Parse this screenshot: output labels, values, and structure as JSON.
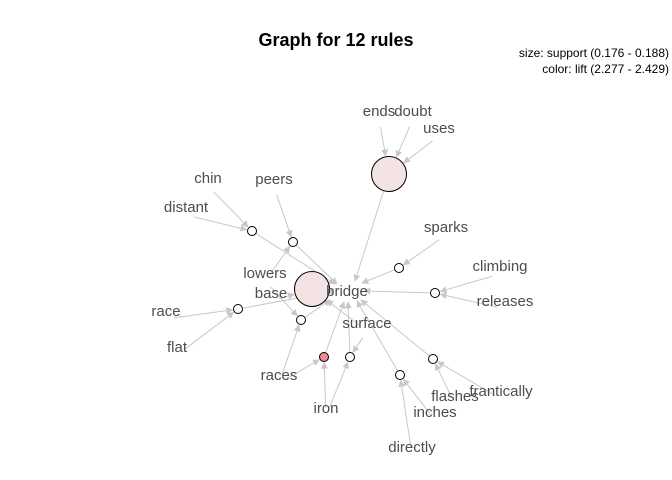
{
  "title": "Graph for 12 rules",
  "legend": {
    "size_line": "size: support (0.176 - 0.188)",
    "color_line": "color: lift (2.277 - 2.429)"
  },
  "colors": {
    "edge": "#c8c8c8",
    "label": "#4d4d4d",
    "rule_default": "#ffffff",
    "rule_pale": "#f3e3e3",
    "rule_highlight": "#f08a94"
  },
  "items": [
    "ends",
    "doubt",
    "uses",
    "chin",
    "peers",
    "distant",
    "sparks",
    "climbing",
    "releases",
    "lowers",
    "base",
    "bridge",
    "race",
    "surface",
    "flat",
    "races",
    "frantically",
    "flashes",
    "iron",
    "inches",
    "directly"
  ],
  "rules": [
    {
      "id": "r1",
      "lhs": [
        "ends",
        "doubt",
        "uses"
      ],
      "rhs": "bridge",
      "size": "large",
      "color": "pale"
    },
    {
      "id": "r2",
      "lhs": [
        "chin",
        "distant"
      ],
      "rhs": "bridge",
      "size": "small",
      "color": "default"
    },
    {
      "id": "r3",
      "lhs": [
        "peers",
        "lowers"
      ],
      "rhs": "bridge",
      "size": "small",
      "color": "default"
    },
    {
      "id": "r4",
      "lhs": [
        "base",
        "surface"
      ],
      "rhs": "bridge",
      "size": "large",
      "color": "pale"
    },
    {
      "id": "r5",
      "lhs": [
        "sparks"
      ],
      "rhs": "bridge",
      "size": "small",
      "color": "default"
    },
    {
      "id": "r6",
      "lhs": [
        "climbing",
        "releases"
      ],
      "rhs": "bridge",
      "size": "small",
      "color": "default"
    },
    {
      "id": "r7",
      "lhs": [
        "race",
        "flat"
      ],
      "rhs": "bridge",
      "size": "small",
      "color": "default"
    },
    {
      "id": "r8",
      "lhs": [
        "lowers",
        "races"
      ],
      "rhs": "bridge",
      "size": "small",
      "color": "default"
    },
    {
      "id": "r9",
      "lhs": [
        "races",
        "iron"
      ],
      "rhs": "bridge",
      "size": "small",
      "color": "highlight"
    },
    {
      "id": "r10",
      "lhs": [
        "iron",
        "surface"
      ],
      "rhs": "bridge",
      "size": "small",
      "color": "default"
    },
    {
      "id": "r11",
      "lhs": [
        "directly",
        "inches"
      ],
      "rhs": "bridge",
      "size": "small",
      "color": "default"
    },
    {
      "id": "r12",
      "lhs": [
        "flashes",
        "frantically"
      ],
      "rhs": "bridge",
      "size": "small",
      "color": "default"
    }
  ]
}
